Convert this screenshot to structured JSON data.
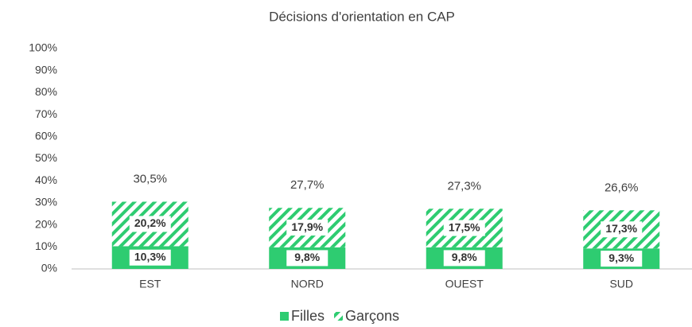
{
  "chart_data": {
    "type": "stacked_bar",
    "title": "Décisions d'orientation en CAP",
    "categories": [
      "EST",
      "NORD",
      "OUEST",
      "SUD"
    ],
    "series": [
      {
        "name": "Filles",
        "color": "#2ecc71",
        "pattern": "solid",
        "values": [
          10.3,
          9.8,
          9.8,
          9.3
        ],
        "value_labels": [
          "10,3%",
          "9,8%",
          "9,8%",
          "9,3%"
        ]
      },
      {
        "name": "Garçons",
        "color": "#2ecc71",
        "pattern": "hatch",
        "values": [
          20.2,
          17.9,
          17.5,
          17.3
        ],
        "value_labels": [
          "20,2%",
          "17,9%",
          "17,5%",
          "17,3%"
        ]
      }
    ],
    "totals": [
      30.5,
      27.7,
      27.3,
      26.6
    ],
    "total_labels": [
      "30,5%",
      "27,7%",
      "27,3%",
      "26,6%"
    ],
    "ylim": [
      0,
      100
    ],
    "yticks": [
      {
        "value": 0,
        "label": "0%"
      },
      {
        "value": 10,
        "label": "10%"
      },
      {
        "value": 20,
        "label": "20%"
      },
      {
        "value": 30,
        "label": "30%"
      },
      {
        "value": 40,
        "label": "40%"
      },
      {
        "value": 50,
        "label": "50%"
      },
      {
        "value": 60,
        "label": "60%"
      },
      {
        "value": 70,
        "label": "70%"
      },
      {
        "value": 80,
        "label": "80%"
      },
      {
        "value": 90,
        "label": "90%"
      },
      {
        "value": 100,
        "label": "100%"
      }
    ],
    "grid": false,
    "legend": "bottom"
  }
}
